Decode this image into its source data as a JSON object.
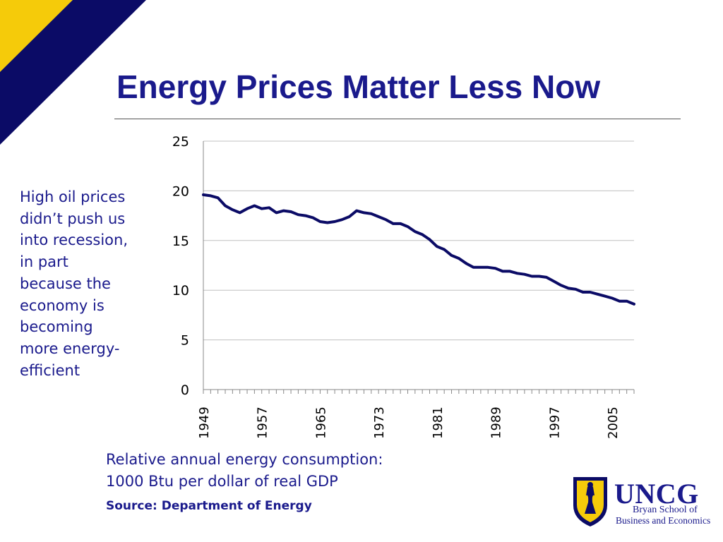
{
  "slide": {
    "title": "Energy Prices Matter Less Now",
    "side_note": [
      "High oil prices",
      "didn’t push us",
      "into recession,",
      "in part",
      "because the",
      "economy is",
      "becoming",
      "more energy-",
      "efficient"
    ],
    "caption": [
      "Relative annual energy consumption:",
      "1000 Btu per dollar of real GDP"
    ],
    "source": "Source:  Department of Energy",
    "colors": {
      "title": "#1a1a8c",
      "navy": "#0b0b66",
      "gold": "#f5cb0a",
      "series": "#0b0b66",
      "grid": "#c0c0c0"
    }
  },
  "logo": {
    "name": "UNCG",
    "line1": "Bryan School of",
    "line2": "Business and Economics",
    "icon": "uncg-shield-icon"
  },
  "chart_data": {
    "type": "line",
    "title": "",
    "xlabel": "",
    "ylabel": "",
    "ylim": [
      0,
      25
    ],
    "yticks": [
      0,
      5,
      10,
      15,
      20,
      25
    ],
    "xlim": [
      1949,
      2008
    ],
    "xticks": [
      "1949",
      "1957",
      "1965",
      "1973",
      "1981",
      "1989",
      "1997",
      "2005"
    ],
    "grid": "horizontal",
    "legend": "none",
    "x": [
      1949,
      1950,
      1951,
      1952,
      1953,
      1954,
      1955,
      1956,
      1957,
      1958,
      1959,
      1960,
      1961,
      1962,
      1963,
      1964,
      1965,
      1966,
      1967,
      1968,
      1969,
      1970,
      1971,
      1972,
      1973,
      1974,
      1975,
      1976,
      1977,
      1978,
      1979,
      1980,
      1981,
      1982,
      1983,
      1984,
      1985,
      1986,
      1987,
      1988,
      1989,
      1990,
      1991,
      1992,
      1993,
      1994,
      1995,
      1996,
      1997,
      1998,
      1999,
      2000,
      2001,
      2002,
      2003,
      2004,
      2005,
      2006,
      2007,
      2008
    ],
    "series": [
      {
        "values": [
          19.6,
          19.5,
          19.3,
          18.5,
          18.1,
          17.8,
          18.2,
          18.5,
          18.2,
          18.3,
          17.8,
          18.0,
          17.9,
          17.6,
          17.5,
          17.3,
          16.9,
          16.8,
          16.9,
          17.1,
          17.4,
          18.0,
          17.8,
          17.7,
          17.4,
          17.1,
          16.7,
          16.7,
          16.4,
          15.9,
          15.6,
          15.1,
          14.4,
          14.1,
          13.5,
          13.2,
          12.7,
          12.3,
          12.3,
          12.3,
          12.2,
          11.9,
          11.9,
          11.7,
          11.6,
          11.4,
          11.4,
          11.3,
          10.9,
          10.5,
          10.2,
          10.1,
          9.8,
          9.8,
          9.6,
          9.4,
          9.2,
          8.9,
          8.9,
          8.6
        ]
      }
    ]
  }
}
